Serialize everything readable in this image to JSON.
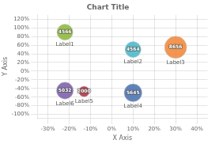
{
  "chart_data": {
    "type": "bubble",
    "title": "Chart Title",
    "xlabel": "X Axis",
    "ylabel": "Y Axis",
    "point_labels": [
      "Label1",
      "Label2",
      "Label3",
      "Label4",
      "Label5",
      "Label6"
    ],
    "x": [
      -22,
      10,
      30,
      10,
      -13,
      -22
    ],
    "values": [
      90,
      50,
      55,
      -50,
      -47,
      -45
    ],
    "sizes": [
      4566,
      4564,
      8656,
      5645,
      2000,
      5032
    ],
    "colors": [
      "#8db83a",
      "#4ab8c8",
      "#f0883a",
      "#4a72b0",
      "#b03040",
      "#7b5ea7"
    ],
    "data_labels": true,
    "xlim": [
      -35,
      45
    ],
    "ylim": [
      -108,
      130
    ],
    "xticks": [
      {
        "value": -30,
        "label": "-30%"
      },
      {
        "value": -20,
        "label": "-20%"
      },
      {
        "value": -10,
        "label": "-10%"
      },
      {
        "value": 0,
        "label": "0%"
      },
      {
        "value": 10,
        "label": "10%"
      },
      {
        "value": 20,
        "label": "20%"
      },
      {
        "value": 30,
        "label": "30%"
      },
      {
        "value": 40,
        "label": "40%"
      }
    ],
    "yticks": [
      {
        "value": -100,
        "label": "-100%"
      },
      {
        "value": -80,
        "label": "-80%"
      },
      {
        "value": -60,
        "label": "-60%"
      },
      {
        "value": -40,
        "label": "-40%"
      },
      {
        "value": -20,
        "label": "-20%"
      },
      {
        "value": 0,
        "label": "0%"
      },
      {
        "value": 20,
        "label": "20%"
      },
      {
        "value": 40,
        "label": "40%"
      },
      {
        "value": 60,
        "label": "60%"
      },
      {
        "value": 80,
        "label": "80%"
      },
      {
        "value": 100,
        "label": "100%"
      },
      {
        "value": 120,
        "label": "120%"
      }
    ],
    "grid": true
  }
}
